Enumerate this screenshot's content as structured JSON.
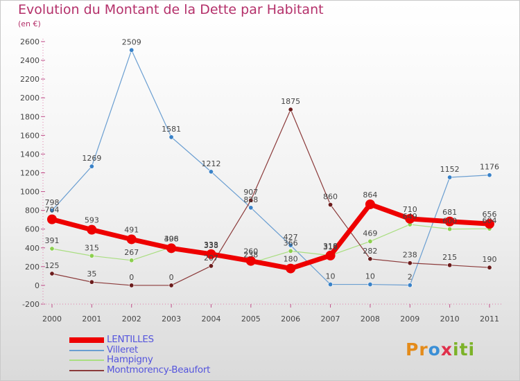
{
  "title": "Evolution du Montant de la Dette par Habitant",
  "subtitle": "(en €)",
  "brand": {
    "letters": [
      "P",
      "r",
      "o",
      "x",
      "i",
      "t",
      "i"
    ],
    "colors": [
      "#e48b1a",
      "#e48b1a",
      "#3a8fd6",
      "#e0304b",
      "#7cb228",
      "#7cb228",
      "#7cb228"
    ]
  },
  "chart_data": {
    "type": "line",
    "title": "Evolution du Montant de la Dette par Habitant",
    "ylabel": "(en €)",
    "xlabel": "",
    "ylim": [
      -200,
      2600
    ],
    "yticks": [
      -200,
      0,
      200,
      400,
      600,
      800,
      1000,
      1200,
      1400,
      1600,
      1800,
      2000,
      2200,
      2400,
      2600
    ],
    "categories": [
      "2000",
      "2001",
      "2002",
      "2003",
      "2004",
      "2005",
      "2006",
      "2007",
      "2008",
      "2009",
      "2010",
      "2011"
    ],
    "grid": false,
    "legend_position": "bottom-left",
    "series": [
      {
        "name": "Villeret",
        "color": "#6a9ed1",
        "marker": "#3a82c8",
        "width": 1.2,
        "values": [
          798,
          1269,
          2509,
          1581,
          1212,
          828,
          427,
          10,
          10,
          2,
          1152,
          1176
        ]
      },
      {
        "name": "Hampigny",
        "color": "#a9de80",
        "marker": "#8ccf4f",
        "width": 1.2,
        "values": [
          391,
          315,
          267,
          408,
          338,
          238,
          366,
          319,
          469,
          649,
          600,
          604
        ]
      },
      {
        "name": "Montmorency-Beaufort",
        "color": "#8b3a3a",
        "marker": "#6b1c1c",
        "width": 1.2,
        "values": [
          125,
          35,
          0,
          0,
          207,
          907,
          1875,
          860,
          282,
          238,
          215,
          190
        ]
      },
      {
        "name": "LENTILLES",
        "color": "#ee0000",
        "marker": "#ee0000",
        "width": 7,
        "values": [
          704,
          593,
          491,
          396,
          333,
          260,
          180,
          318,
          864,
          710,
          681,
          656
        ]
      }
    ]
  }
}
